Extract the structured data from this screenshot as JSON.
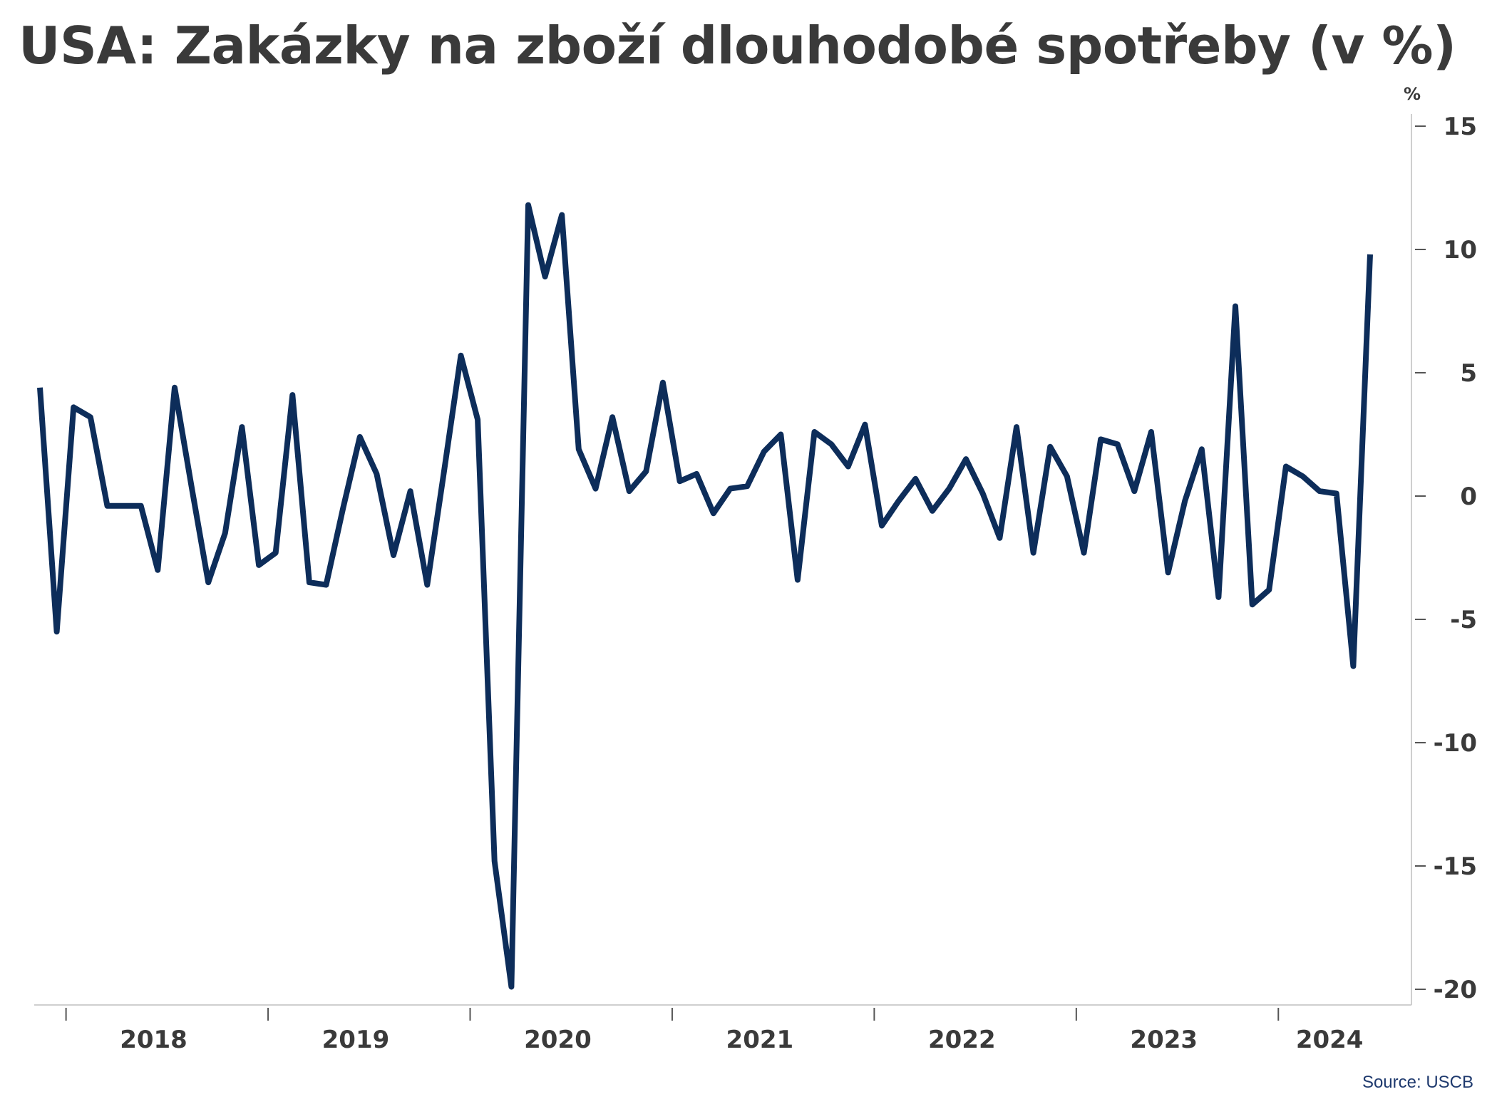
{
  "chart_data": {
    "type": "line",
    "title": "USA: Zakázky na zboží dlouhodobé spotřeby (v %)",
    "unit": "%",
    "source": "Source: USCB",
    "ylim": [
      -20,
      15
    ],
    "yticks": [
      15,
      10,
      5,
      0,
      -5,
      -10,
      -15,
      -20
    ],
    "ytick_labels": [
      "15",
      "10",
      "5",
      "0",
      "-5",
      "-10",
      "-15",
      "-20"
    ],
    "x_start": "2017-12",
    "x_end": "2024-07",
    "year_labels": [
      "2018",
      "2019",
      "2020",
      "2021",
      "2022",
      "2023",
      "2024"
    ],
    "grid": false,
    "colors": {
      "line": "#0d2d5a",
      "text": "#3a3a3a",
      "axis": "#555555",
      "source": "#1f3a6e"
    },
    "series": [
      {
        "values": [
          4.4,
          -5.5,
          3.6,
          3.2,
          -0.4,
          -0.4,
          -0.4,
          -3.0,
          4.4,
          0.4,
          -3.5,
          -1.5,
          2.8,
          -2.8,
          -2.3,
          4.1,
          -3.5,
          -3.6,
          -0.5,
          2.4,
          0.9,
          -2.4,
          0.2,
          -3.6,
          1.0,
          5.7,
          3.1,
          -14.8,
          -19.9,
          11.8,
          8.9,
          11.4,
          1.9,
          0.3,
          3.2,
          0.2,
          1.0,
          4.6,
          0.6,
          0.9,
          -0.7,
          0.3,
          0.4,
          1.8,
          2.5,
          -3.4,
          2.6,
          2.1,
          1.2,
          2.9,
          -1.2,
          -0.2,
          0.7,
          -0.6,
          0.3,
          1.5,
          0.1,
          -1.7,
          2.8,
          -2.3,
          2.0,
          0.8,
          -2.3,
          2.3,
          2.1,
          0.2,
          2.6,
          -3.1,
          -0.2,
          1.9,
          -4.1,
          7.7,
          -4.4,
          -3.8,
          1.2,
          0.8,
          0.2,
          0.1,
          -6.9,
          9.8
        ]
      }
    ]
  }
}
